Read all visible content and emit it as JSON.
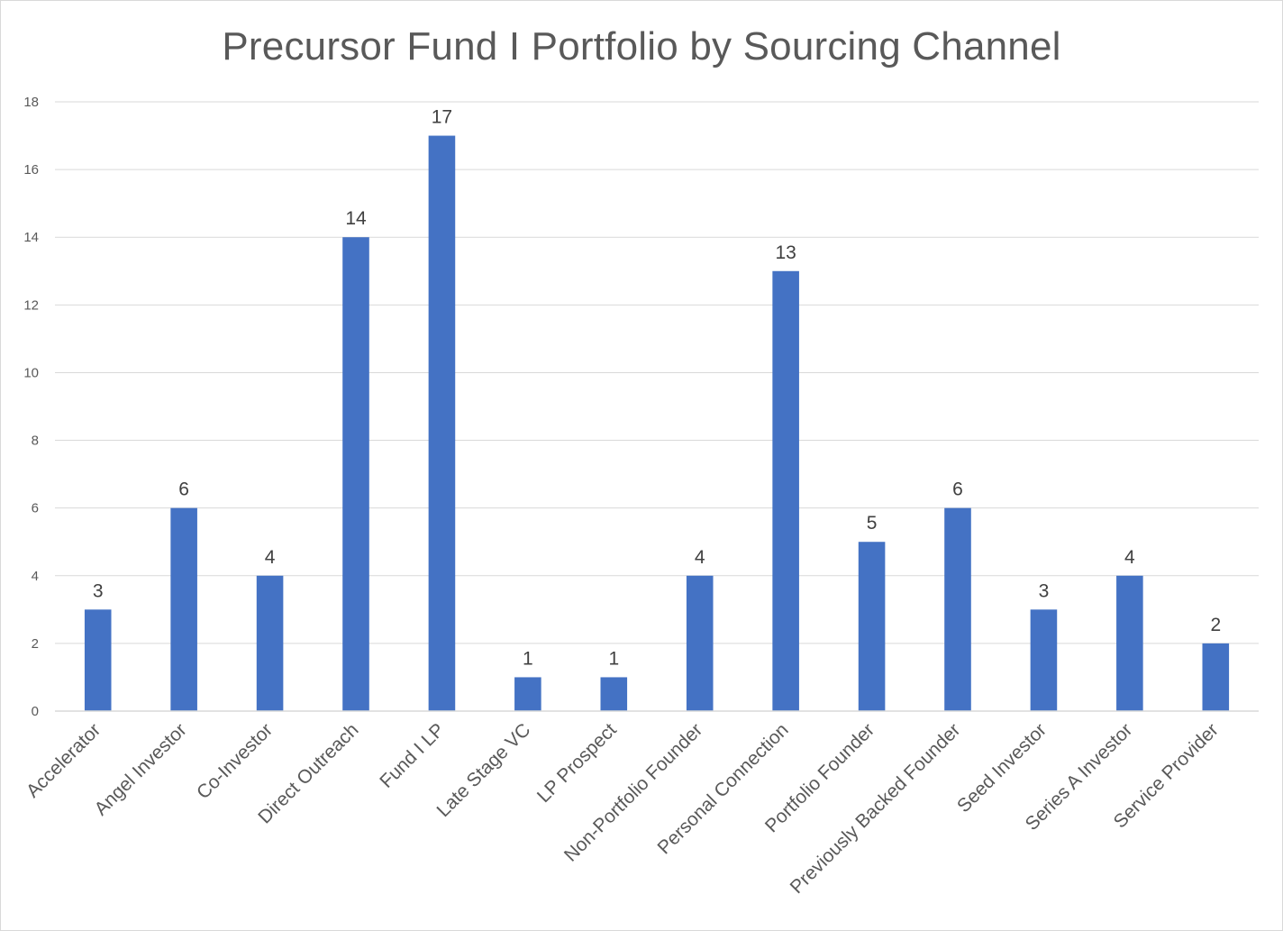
{
  "chart_data": {
    "type": "bar",
    "title": "Precursor Fund I Portfolio by Sourcing Channel",
    "xlabel": "",
    "ylabel": "",
    "categories": [
      "Accelerator",
      "Angel Investor",
      "Co-Investor",
      "Direct Outreach",
      "Fund I LP",
      "Late Stage VC",
      "LP Prospect",
      "Non-Portfolio Founder",
      "Personal Connection",
      "Portfolio Founder",
      "Previously Backed Founder",
      "Seed Investor",
      "Series A Investor",
      "Service Provider"
    ],
    "values": [
      3,
      6,
      4,
      14,
      17,
      1,
      1,
      4,
      13,
      5,
      6,
      3,
      4,
      2
    ],
    "ylim": [
      0,
      18
    ],
    "yticks": [
      0,
      2,
      4,
      6,
      8,
      10,
      12,
      14,
      16,
      18
    ],
    "grid": true,
    "legend": "none",
    "bar_color": "#4472C4",
    "data_labels": true
  }
}
